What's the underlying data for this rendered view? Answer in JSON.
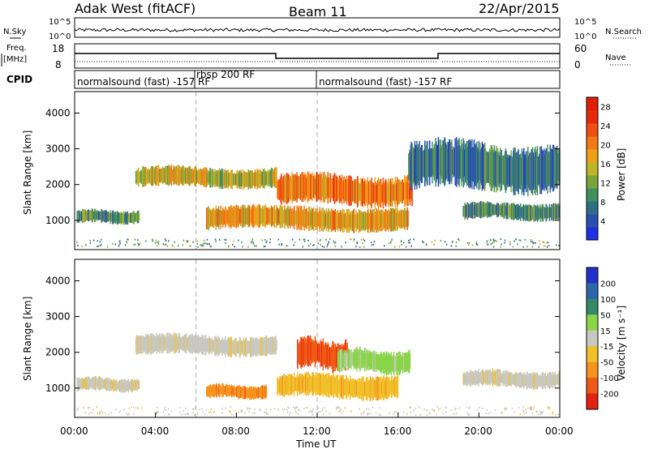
{
  "header": {
    "title": "Adak West (fitACF)",
    "beam": "Beam 11",
    "date": "22/Apr/2015"
  },
  "labels": {
    "nsky": "N.Sky",
    "nsearch": "N.Search",
    "freq_line1": "Freq.",
    "freq_line2": "[MHz]",
    "nave": "Nave",
    "cpid": "CPID"
  },
  "noise_panel": {
    "left_ticks": [
      "10^5",
      "10^0"
    ],
    "right_ticks": [
      "10^5",
      "10^0"
    ]
  },
  "freq_panel": {
    "left_ticks": [
      "18",
      "8"
    ],
    "right_ticks": [
      "60",
      "0"
    ]
  },
  "cpid_segments": [
    {
      "label": "normalsound (fast) -157 RF",
      "start_hour": 0
    },
    {
      "label": "rbsp 200 RF",
      "start_hour": 6
    },
    {
      "label": "normalsound (fast) -157 RF",
      "start_hour": 12
    }
  ],
  "colorbars": {
    "power": {
      "label": "Power [dB]",
      "ticks": [
        "4",
        "8",
        "12",
        "16",
        "20",
        "24",
        "28"
      ],
      "colors": [
        "#1e2fe6",
        "#2b4fae",
        "#2e6e86",
        "#3f8f5f",
        "#7aa33a",
        "#bdb528",
        "#f0a018",
        "#f27a14",
        "#ef4f10",
        "#e82a0c",
        "#e01e08"
      ]
    },
    "velocity": {
      "label": "Velocity [m s⁻¹]",
      "ticks": [
        "200",
        "100",
        "50",
        "15",
        "-15",
        "-50",
        "-100",
        "-200"
      ],
      "colors": [
        "#2132c8",
        "#2d66a8",
        "#328a66",
        "#8ad44a",
        "#c8c8c0",
        "#f0c02a",
        "#f4941e",
        "#ee5a14",
        "#e42010"
      ]
    }
  },
  "chart_data": [
    {
      "type": "heatmap",
      "title": "Power",
      "ylabel": "Slant Range [km]",
      "xlabel": "Time UT",
      "ylim": [
        180,
        4600
      ],
      "xlim": [
        0,
        24
      ],
      "yticks": [
        1000,
        2000,
        3000,
        4000
      ],
      "xticks": [
        "00:00",
        "04:00",
        "08:00",
        "12:00",
        "16:00",
        "20:00",
        "00:00"
      ],
      "regions": [
        {
          "name": "band-1000km-early",
          "t0": 0.1,
          "t1": 3.2,
          "r0": 900,
          "r1": 1300,
          "value_db": 8
        },
        {
          "name": "band-2200km-morning",
          "t0": 3.0,
          "t1": 10.0,
          "r0": 1900,
          "r1": 2500,
          "value_db": 14
        },
        {
          "name": "band-2000km-midday",
          "t0": 10.0,
          "t1": 16.7,
          "r0": 1400,
          "r1": 2300,
          "value_db": 22
        },
        {
          "name": "band-1000km-midday",
          "t0": 6.5,
          "t1": 16.5,
          "r0": 700,
          "r1": 1400,
          "value_db": 18
        },
        {
          "name": "band-1300km-evening",
          "t0": 19.2,
          "t1": 24.0,
          "r0": 1000,
          "r1": 1500,
          "value_db": 10
        },
        {
          "name": "band-2500km-evening",
          "t0": 16.5,
          "t1": 24.0,
          "r0": 1800,
          "r1": 3200,
          "value_db": 6
        }
      ]
    },
    {
      "type": "heatmap",
      "title": "Velocity",
      "ylabel": "Slant Range [km]",
      "xlabel": "Time UT",
      "ylim": [
        180,
        4600
      ],
      "xlim": [
        0,
        24
      ],
      "yticks": [
        1000,
        2000,
        3000,
        4000
      ],
      "xticks": [
        "00:00",
        "04:00",
        "08:00",
        "12:00",
        "16:00",
        "20:00",
        "00:00"
      ],
      "regions": [
        {
          "name": "grey-1000km-early",
          "t0": 0.1,
          "t1": 3.2,
          "r0": 900,
          "r1": 1300,
          "velocity": 0
        },
        {
          "name": "grey-2200km-morning",
          "t0": 3.0,
          "t1": 10.0,
          "r0": 1900,
          "r1": 2500,
          "velocity": 0
        },
        {
          "name": "red-2000km-noon",
          "t0": 11.0,
          "t1": 13.5,
          "r0": 1500,
          "r1": 2400,
          "velocity": -150
        },
        {
          "name": "green-1800km-afternoon",
          "t0": 13.0,
          "t1": 16.6,
          "r0": 1400,
          "r1": 2100,
          "velocity": 40
        },
        {
          "name": "orange-900km-morning",
          "t0": 6.5,
          "t1": 9.5,
          "r0": 700,
          "r1": 1100,
          "velocity": -80
        },
        {
          "name": "yellow-1000km-midday",
          "t0": 10.0,
          "t1": 16.0,
          "r0": 700,
          "r1": 1400,
          "velocity": -30
        },
        {
          "name": "grey-1200km-evening",
          "t0": 19.2,
          "t1": 24.0,
          "r0": 1000,
          "r1": 1500,
          "velocity": 0
        }
      ]
    }
  ]
}
